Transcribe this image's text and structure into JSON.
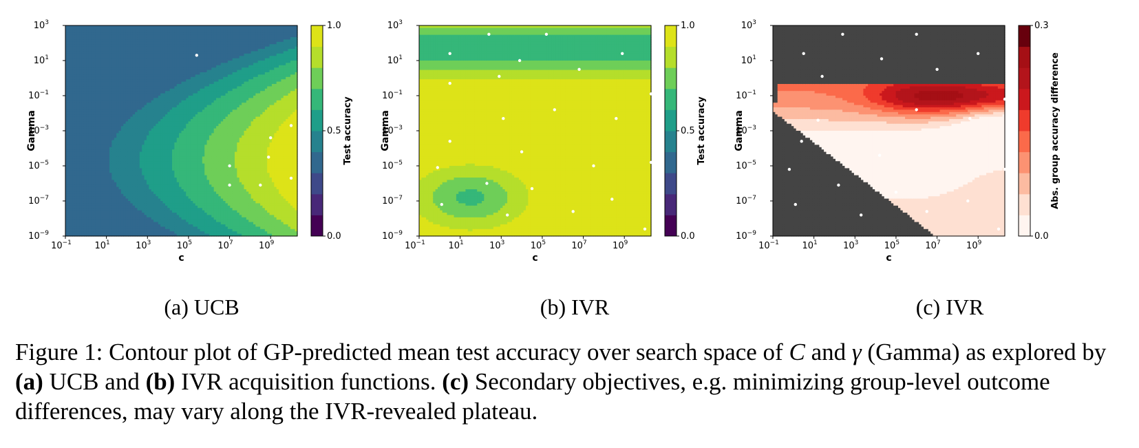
{
  "chart_data": [
    {
      "type": "heatmap",
      "subcaption": "(a) UCB",
      "xlabel": "C",
      "ylabel": "Gamma",
      "x_scale": "log",
      "y_scale": "log",
      "xlim": [
        0.1,
        20000000000
      ],
      "ylim": [
        1e-09,
        1000
      ],
      "x_tick_exponents": [
        "−1",
        "1",
        "3",
        "5",
        "7",
        "9"
      ],
      "y_tick_exponents": [
        "−9",
        "−7",
        "−5",
        "−3",
        "−1",
        "1",
        "3"
      ],
      "colorbar_label": "Test accuracy",
      "colorbar_ticks": [
        "0.0",
        "0.5",
        "1.0"
      ],
      "colormap": "viridis",
      "contour_levels": [
        0.0,
        0.1,
        0.2,
        0.3,
        0.4,
        0.5,
        0.6,
        0.7,
        0.8,
        0.9,
        1.0
      ],
      "points": [
        {
          "log10_c": 5.4,
          "log10_gamma": 1.3
        },
        {
          "log10_c": 9.0,
          "log10_gamma": -3.4
        },
        {
          "log10_c": 8.9,
          "log10_gamma": -4.5
        },
        {
          "log10_c": 7.0,
          "log10_gamma": -5.0
        },
        {
          "log10_c": 7.0,
          "log10_gamma": -6.1
        },
        {
          "log10_c": 8.5,
          "log10_gamma": -6.1
        },
        {
          "log10_c": 10.0,
          "log10_gamma": -5.7
        },
        {
          "log10_c": 10.0,
          "log10_gamma": -2.7
        }
      ]
    },
    {
      "type": "heatmap",
      "subcaption": "(b) IVR",
      "xlabel": "C",
      "ylabel": "Gamma",
      "x_scale": "log",
      "y_scale": "log",
      "xlim": [
        0.1,
        20000000000
      ],
      "ylim": [
        1e-09,
        1000
      ],
      "x_tick_exponents": [
        "−1",
        "1",
        "3",
        "5",
        "7",
        "9"
      ],
      "y_tick_exponents": [
        "−9",
        "−7",
        "−5",
        "−3",
        "−1",
        "1",
        "3"
      ],
      "colorbar_label": "Test accuracy",
      "colorbar_ticks": [
        "0.0",
        "0.5",
        "1.0"
      ],
      "colormap": "viridis",
      "contour_levels": [
        0.0,
        0.1,
        0.2,
        0.3,
        0.4,
        0.5,
        0.6,
        0.7,
        0.8,
        0.9,
        1.0
      ],
      "points": [
        {
          "log10_c": 2.4,
          "log10_gamma": 2.5
        },
        {
          "log10_c": 5.2,
          "log10_gamma": 2.5
        },
        {
          "log10_c": 0.5,
          "log10_gamma": 1.4
        },
        {
          "log10_c": 3.9,
          "log10_gamma": 1.0
        },
        {
          "log10_c": 2.9,
          "log10_gamma": 0.1
        },
        {
          "log10_c": 6.8,
          "log10_gamma": 0.5
        },
        {
          "log10_c": 8.9,
          "log10_gamma": 1.4
        },
        {
          "log10_c": 0.5,
          "log10_gamma": -0.3
        },
        {
          "log10_c": 10.3,
          "log10_gamma": -0.9
        },
        {
          "log10_c": 5.6,
          "log10_gamma": -1.8
        },
        {
          "log10_c": 3.1,
          "log10_gamma": -2.3
        },
        {
          "log10_c": 8.6,
          "log10_gamma": -2.3
        },
        {
          "log10_c": 0.5,
          "log10_gamma": -3.6
        },
        {
          "log10_c": 4.0,
          "log10_gamma": -4.2
        },
        {
          "log10_c": 7.5,
          "log10_gamma": -5.0
        },
        {
          "log10_c": 10.3,
          "log10_gamma": -4.8
        },
        {
          "log10_c": -0.1,
          "log10_gamma": -5.1
        },
        {
          "log10_c": 2.3,
          "log10_gamma": -6.0
        },
        {
          "log10_c": 4.5,
          "log10_gamma": -6.3
        },
        {
          "log10_c": 8.4,
          "log10_gamma": -6.9
        },
        {
          "log10_c": 0.1,
          "log10_gamma": -7.2
        },
        {
          "log10_c": 3.3,
          "log10_gamma": -7.8
        },
        {
          "log10_c": 6.5,
          "log10_gamma": -7.6
        },
        {
          "log10_c": 10.0,
          "log10_gamma": -8.6
        }
      ]
    },
    {
      "type": "heatmap",
      "subcaption": "(c) IVR",
      "xlabel": "C",
      "ylabel": "Gamma",
      "x_scale": "log",
      "y_scale": "log",
      "xlim": [
        0.1,
        20000000000
      ],
      "ylim": [
        1e-09,
        1000
      ],
      "x_tick_exponents": [
        "−1",
        "1",
        "3",
        "5",
        "7",
        "9"
      ],
      "y_tick_exponents": [
        "−9",
        "−7",
        "−5",
        "−3",
        "−1",
        "1",
        "3"
      ],
      "colorbar_label": "Abs. group accuracy difference",
      "colorbar_ticks": [
        "0.0",
        "0.3"
      ],
      "colormap": "reds",
      "contour_levels": [
        0.0,
        0.03,
        0.06,
        0.09,
        0.12,
        0.15,
        0.18,
        0.21,
        0.24,
        0.27,
        0.3
      ],
      "masked_region_color": "#444444",
      "points": [
        {
          "log10_c": 2.4,
          "log10_gamma": 2.5
        },
        {
          "log10_c": 6.0,
          "log10_gamma": 2.5
        },
        {
          "log10_c": 0.5,
          "log10_gamma": 1.4
        },
        {
          "log10_c": 4.3,
          "log10_gamma": 1.1
        },
        {
          "log10_c": 7.0,
          "log10_gamma": 0.5
        },
        {
          "log10_c": 9.0,
          "log10_gamma": 1.4
        },
        {
          "log10_c": 1.4,
          "log10_gamma": 0.1
        },
        {
          "log10_c": 10.3,
          "log10_gamma": -1.2
        },
        {
          "log10_c": 6.0,
          "log10_gamma": -1.8
        },
        {
          "log10_c": 8.6,
          "log10_gamma": -2.3
        },
        {
          "log10_c": 1.2,
          "log10_gamma": -2.4
        },
        {
          "log10_c": 0.4,
          "log10_gamma": -3.6
        },
        {
          "log10_c": 4.2,
          "log10_gamma": -4.4
        },
        {
          "log10_c": 10.3,
          "log10_gamma": -5.2
        },
        {
          "log10_c": -0.2,
          "log10_gamma": -5.2
        },
        {
          "log10_c": 2.2,
          "log10_gamma": -6.1
        },
        {
          "log10_c": 5.0,
          "log10_gamma": -6.5
        },
        {
          "log10_c": 8.5,
          "log10_gamma": -7.0
        },
        {
          "log10_c": 0.1,
          "log10_gamma": -7.2
        },
        {
          "log10_c": 3.3,
          "log10_gamma": -7.8
        },
        {
          "log10_c": 6.5,
          "log10_gamma": -7.6
        },
        {
          "log10_c": 10.0,
          "log10_gamma": -8.6
        }
      ]
    }
  ],
  "figure_caption": {
    "prefix": "Figure 1: Contour plot of GP-predicted mean test accuracy over search space of ",
    "sym_c": "C",
    "and": " and ",
    "sym_gamma": "γ",
    "mid1": " (Gamma) as explored by ",
    "label_a": "(a)",
    "mid2": " UCB and ",
    "label_b": "(b)",
    "mid3": " IVR acquisition functions. ",
    "label_c": "(c)",
    "suffix": " Secondary objectives, e.g. minimizing group-level outcome differences, may vary along the IVR-revealed plateau."
  }
}
